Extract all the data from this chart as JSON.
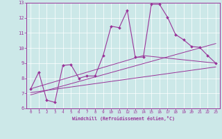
{
  "xlabel": "Windchill (Refroidissement éolien,°C)",
  "xlim": [
    -0.5,
    23.5
  ],
  "ylim": [
    6,
    13
  ],
  "xticks": [
    0,
    1,
    2,
    3,
    4,
    5,
    6,
    7,
    8,
    9,
    10,
    11,
    12,
    13,
    14,
    15,
    16,
    17,
    18,
    19,
    20,
    21,
    22,
    23
  ],
  "yticks": [
    6,
    7,
    8,
    9,
    10,
    11,
    12,
    13
  ],
  "bg_color": "#cce8e8",
  "line_color": "#993399",
  "line1_x": [
    0,
    1,
    2,
    3,
    4,
    5,
    6,
    7,
    8,
    9,
    10,
    11,
    12,
    13,
    14,
    15,
    16,
    17,
    18,
    19,
    20,
    21,
    22,
    23
  ],
  "line1_y": [
    7.3,
    8.4,
    6.55,
    6.4,
    8.85,
    8.9,
    8.0,
    8.15,
    8.15,
    9.5,
    11.45,
    11.35,
    12.5,
    9.4,
    9.4,
    12.9,
    12.9,
    12.05,
    10.9,
    10.55,
    10.1,
    10.05,
    9.5,
    9.0
  ],
  "line2_x": [
    0,
    23
  ],
  "line2_y": [
    7.05,
    8.75
  ],
  "line3_x": [
    0,
    14,
    23
  ],
  "line3_y": [
    7.3,
    9.5,
    9.0
  ],
  "line4_x": [
    0,
    23
  ],
  "line4_y": [
    6.9,
    10.3
  ]
}
